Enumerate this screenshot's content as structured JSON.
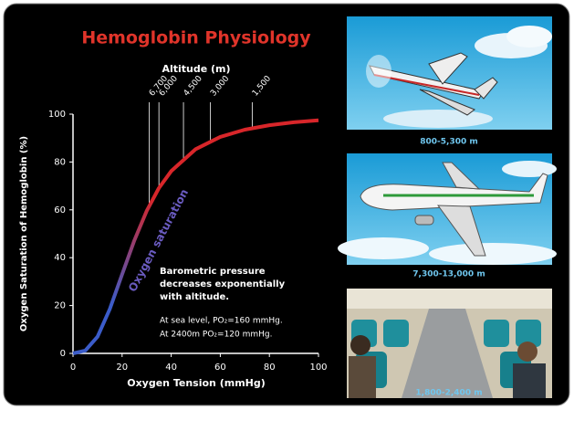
{
  "chart_data": {
    "type": "line",
    "title": "Hemoglobin Physiology",
    "x_label": "Oxygen Tension (mmHg)",
    "y_label": "Oxygen Saturation of Hemoglobin (%)",
    "top_axis_label": "Altitude (m)",
    "x": [
      0,
      5,
      10,
      15,
      20,
      25,
      30,
      35,
      40,
      50,
      60,
      70,
      80,
      90,
      100
    ],
    "series": [
      {
        "name": "Oxygen saturation",
        "color": "#d8262a",
        "low_color": "#3b5cc9",
        "values": [
          0,
          1.2,
          7.0,
          18.5,
          33.0,
          47.3,
          59.5,
          69.1,
          76.2,
          85.4,
          90.5,
          93.5,
          95.4,
          96.6,
          97.4
        ]
      }
    ],
    "xlim": [
      0,
      100
    ],
    "ylim": [
      0,
      100
    ],
    "xticks": [
      0,
      20,
      40,
      60,
      80,
      100
    ],
    "yticks": [
      0,
      20,
      40,
      60,
      80,
      100
    ],
    "altitude_markers": [
      {
        "label": "6,700",
        "x": 31
      },
      {
        "label": "6,000",
        "x": 35
      },
      {
        "label": "4,500",
        "x": 45
      },
      {
        "label": "3,000",
        "x": 56
      },
      {
        "label": "1,500",
        "x": 73
      }
    ],
    "note_heading": [
      "Barometric pressure",
      "decreases exponentially",
      "with altitude."
    ],
    "note_detail": [
      "At sea level, PO₂=160 mmHg.",
      "At 2400m PO₂=120 mmHg."
    ]
  },
  "panels": [
    {
      "caption": "800-5,300 m"
    },
    {
      "caption": "7,300-13,000 m"
    },
    {
      "caption": "1,800-2,400 m"
    }
  ]
}
